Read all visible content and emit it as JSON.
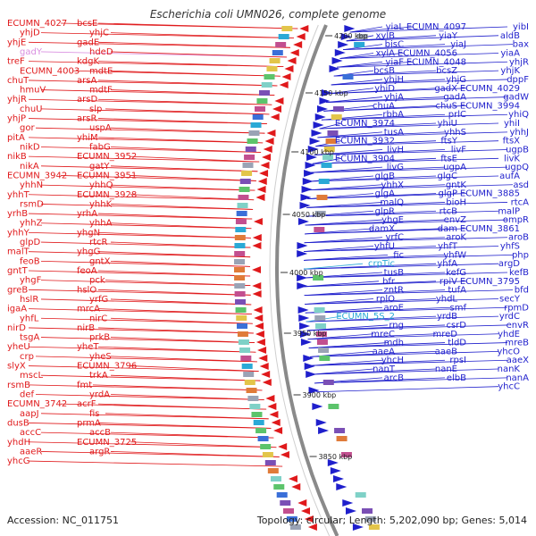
{
  "title": "Escherichia coli UMN026, complete genome",
  "footer": {
    "accession": "Accession: NC_011751",
    "stats": "Topology: circular; Length: 5,202,090 bp; Genes: 5,014"
  },
  "colors": {
    "left_genes": "#e0191b",
    "right_genes": "#1f1fcc",
    "rna": "#2aa9d6",
    "pseudo": "#d98ee0",
    "backbone": "#8a8a8a",
    "tick": "#2a7a2a"
  },
  "kbp_marks": [
    "4200 kbp",
    "4150 kbp",
    "4100 kbp",
    "4050 kbp",
    "4000 kbp",
    "3950 kbp",
    "3900 kbp",
    "3850 kbp"
  ],
  "left_labels": [
    {
      "t": "ECUMN_4027",
      "c": "left_genes"
    },
    {
      "t": "bcsE",
      "c": "left_genes"
    },
    {
      "t": "yhjD",
      "c": "left_genes"
    },
    {
      "t": "yhjC",
      "c": "left_genes"
    },
    {
      "t": "yhjE",
      "c": "left_genes"
    },
    {
      "t": "gadE",
      "c": "left_genes"
    },
    {
      "t": "gadY",
      "c": "pseudo"
    },
    {
      "t": "hdeD",
      "c": "left_genes"
    },
    {
      "t": "treF",
      "c": "left_genes"
    },
    {
      "t": "kdgK",
      "c": "left_genes"
    },
    {
      "t": "ECUMN_4003",
      "c": "left_genes"
    },
    {
      "t": "mdtE",
      "c": "left_genes"
    },
    {
      "t": "chuT",
      "c": "left_genes"
    },
    {
      "t": "arsA",
      "c": "left_genes"
    },
    {
      "t": "hmuV",
      "c": "left_genes"
    },
    {
      "t": "mdtF",
      "c": "left_genes"
    },
    {
      "t": "yhjR",
      "c": "left_genes"
    },
    {
      "t": "arsD",
      "c": "left_genes"
    },
    {
      "t": "chuU",
      "c": "left_genes"
    },
    {
      "t": "slp",
      "c": "left_genes"
    },
    {
      "t": "yhjP",
      "c": "left_genes"
    },
    {
      "t": "arsR",
      "c": "left_genes"
    },
    {
      "t": "gor",
      "c": "left_genes"
    },
    {
      "t": "uspA",
      "c": "left_genes"
    },
    {
      "t": "pitA",
      "c": "left_genes"
    },
    {
      "t": "yhiM",
      "c": "left_genes"
    },
    {
      "t": "nikD",
      "c": "left_genes"
    },
    {
      "t": "fabG",
      "c": "left_genes"
    },
    {
      "t": "nikB",
      "c": "left_genes"
    },
    {
      "t": "ECUMN_3952",
      "c": "left_genes"
    },
    {
      "t": "nikA",
      "c": "left_genes"
    },
    {
      "t": "gatY",
      "c": "left_genes"
    },
    {
      "t": "ECUMN_3942",
      "c": "left_genes"
    },
    {
      "t": "ECUMN_3951",
      "c": "left_genes"
    },
    {
      "t": "yhhN",
      "c": "left_genes"
    },
    {
      "t": "yhhQ",
      "c": "left_genes"
    },
    {
      "t": "yhhT",
      "c": "left_genes"
    },
    {
      "t": "ECUMN_3928",
      "c": "left_genes"
    },
    {
      "t": "rsmD",
      "c": "left_genes"
    },
    {
      "t": "yhhK",
      "c": "left_genes"
    },
    {
      "t": "yrhB",
      "c": "left_genes"
    },
    {
      "t": "yrhA",
      "c": "left_genes"
    },
    {
      "t": "yhhZ",
      "c": "left_genes"
    },
    {
      "t": "yhhA",
      "c": "left_genes"
    },
    {
      "t": "yhhY",
      "c": "left_genes"
    },
    {
      "t": "yhgN",
      "c": "left_genes"
    },
    {
      "t": "glpD",
      "c": "left_genes"
    },
    {
      "t": "rtcR",
      "c": "left_genes"
    },
    {
      "t": "malT",
      "c": "left_genes"
    },
    {
      "t": "yhgG",
      "c": "left_genes"
    },
    {
      "t": "feoB",
      "c": "left_genes"
    },
    {
      "t": "gntX",
      "c": "left_genes"
    },
    {
      "t": "gntT",
      "c": "left_genes"
    },
    {
      "t": "feoA",
      "c": "left_genes"
    },
    {
      "t": "yhgF",
      "c": "left_genes"
    },
    {
      "t": "pck",
      "c": "left_genes"
    },
    {
      "t": "greB",
      "c": "left_genes"
    },
    {
      "t": "hslO",
      "c": "left_genes"
    },
    {
      "t": "hslR",
      "c": "left_genes"
    },
    {
      "t": "yrfG",
      "c": "left_genes"
    },
    {
      "t": "igaA",
      "c": "left_genes"
    },
    {
      "t": "mrcA",
      "c": "left_genes"
    },
    {
      "t": "yhfL",
      "c": "left_genes"
    },
    {
      "t": "nirC",
      "c": "left_genes"
    },
    {
      "t": "nirD",
      "c": "left_genes"
    },
    {
      "t": "nirB",
      "c": "left_genes"
    },
    {
      "t": "tsgA",
      "c": "left_genes"
    },
    {
      "t": "prkB",
      "c": "left_genes"
    },
    {
      "t": "yheU",
      "c": "left_genes"
    },
    {
      "t": "yheT",
      "c": "left_genes"
    },
    {
      "t": "crp",
      "c": "left_genes"
    },
    {
      "t": "yheS",
      "c": "left_genes"
    },
    {
      "t": "slyX",
      "c": "left_genes"
    },
    {
      "t": "ECUMN_3796",
      "c": "left_genes"
    },
    {
      "t": "mscL",
      "c": "left_genes"
    },
    {
      "t": "trkA",
      "c": "left_genes"
    },
    {
      "t": "rsmB",
      "c": "left_genes"
    },
    {
      "t": "fmt",
      "c": "left_genes"
    },
    {
      "t": "def",
      "c": "left_genes"
    },
    {
      "t": "yrdA",
      "c": "left_genes"
    },
    {
      "t": "ECUMN_3742",
      "c": "left_genes"
    },
    {
      "t": "acrF",
      "c": "left_genes"
    },
    {
      "t": "aapJ",
      "c": "left_genes"
    },
    {
      "t": "fis",
      "c": "left_genes"
    },
    {
      "t": "dusB",
      "c": "left_genes"
    },
    {
      "t": "prmA",
      "c": "left_genes"
    },
    {
      "t": "accC",
      "c": "left_genes"
    },
    {
      "t": "accB",
      "c": "left_genes"
    },
    {
      "t": "yhdH",
      "c": "left_genes"
    },
    {
      "t": "ECUMN_3725",
      "c": "left_genes"
    },
    {
      "t": "aaeR",
      "c": "left_genes"
    },
    {
      "t": "argR",
      "c": "left_genes"
    },
    {
      "t": "yhcG",
      "c": "left_genes"
    }
  ],
  "right_labels": [
    {
      "t": "yibI",
      "c": "right_genes"
    },
    {
      "t": "ECUMN_4097",
      "c": "right_genes"
    },
    {
      "t": "yiaL",
      "c": "right_genes"
    },
    {
      "t": "aldB",
      "c": "right_genes"
    },
    {
      "t": "yiaY",
      "c": "right_genes"
    },
    {
      "t": "xylB",
      "c": "right_genes"
    },
    {
      "t": "bax",
      "c": "right_genes"
    },
    {
      "t": "yiaJ",
      "c": "right_genes"
    },
    {
      "t": "bisC",
      "c": "right_genes"
    },
    {
      "t": "yiaA",
      "c": "right_genes"
    },
    {
      "t": "ECUMN_4056",
      "c": "right_genes"
    },
    {
      "t": "xylA",
      "c": "right_genes"
    },
    {
      "t": "yhjR",
      "c": "right_genes"
    },
    {
      "t": "ECUMN_4048",
      "c": "right_genes"
    },
    {
      "t": "yiaF",
      "c": "right_genes"
    },
    {
      "t": "yhjK",
      "c": "right_genes"
    },
    {
      "t": "bcsZ",
      "c": "right_genes"
    },
    {
      "t": "bcsB",
      "c": "right_genes"
    },
    {
      "t": "dppF",
      "c": "right_genes"
    },
    {
      "t": "yhjG",
      "c": "right_genes"
    },
    {
      "t": "yhjH",
      "c": "right_genes"
    },
    {
      "t": "ECUMN_4029",
      "c": "right_genes"
    },
    {
      "t": "gadX",
      "c": "right_genes"
    },
    {
      "t": "yhiD",
      "c": "right_genes"
    },
    {
      "t": "gadW",
      "c": "right_genes"
    },
    {
      "t": "gadA",
      "c": "right_genes"
    },
    {
      "t": "yhjA",
      "c": "right_genes"
    },
    {
      "t": "ECUMN_3994",
      "c": "right_genes"
    },
    {
      "t": "chuS",
      "c": "right_genes"
    },
    {
      "t": "chuA",
      "c": "right_genes"
    },
    {
      "t": "yhiQ",
      "c": "right_genes"
    },
    {
      "t": "prlC",
      "c": "right_genes"
    },
    {
      "t": "rbbA",
      "c": "right_genes"
    },
    {
      "t": "yhiI",
      "c": "right_genes"
    },
    {
      "t": "yhiU",
      "c": "right_genes"
    },
    {
      "t": "ECUMN_3974",
      "c": "right_genes"
    },
    {
      "t": "yhhJ",
      "c": "right_genes"
    },
    {
      "t": "yhhS",
      "c": "right_genes"
    },
    {
      "t": "tusA",
      "c": "right_genes"
    },
    {
      "t": "ftsX",
      "c": "right_genes"
    },
    {
      "t": "ftsY",
      "c": "right_genes"
    },
    {
      "t": "ECUMN_3932",
      "c": "right_genes"
    },
    {
      "t": "ugpB",
      "c": "right_genes"
    },
    {
      "t": "livF",
      "c": "right_genes"
    },
    {
      "t": "livH",
      "c": "right_genes"
    },
    {
      "t": "livK",
      "c": "right_genes"
    },
    {
      "t": "ftsE",
      "c": "right_genes"
    },
    {
      "t": "ECUMN_3904",
      "c": "right_genes"
    },
    {
      "t": "ugpQ",
      "c": "right_genes"
    },
    {
      "t": "ugpA",
      "c": "right_genes"
    },
    {
      "t": "livG",
      "c": "right_genes"
    },
    {
      "t": "aufA",
      "c": "right_genes"
    },
    {
      "t": "glgC",
      "c": "right_genes"
    },
    {
      "t": "glgB",
      "c": "right_genes"
    },
    {
      "t": "asd",
      "c": "right_genes"
    },
    {
      "t": "gntK",
      "c": "right_genes"
    },
    {
      "t": "yhhX",
      "c": "right_genes"
    },
    {
      "t": "ECUMN_3885",
      "c": "right_genes"
    },
    {
      "t": "glgP",
      "c": "right_genes"
    },
    {
      "t": "glgA",
      "c": "right_genes"
    },
    {
      "t": "rtcA",
      "c": "right_genes"
    },
    {
      "t": "bioH",
      "c": "right_genes"
    },
    {
      "t": "malQ",
      "c": "right_genes"
    },
    {
      "t": "malP",
      "c": "right_genes"
    },
    {
      "t": "rtcB",
      "c": "right_genes"
    },
    {
      "t": "glpR",
      "c": "right_genes"
    },
    {
      "t": "ompR",
      "c": "right_genes"
    },
    {
      "t": "envZ",
      "c": "right_genes"
    },
    {
      "t": "yhgE",
      "c": "right_genes"
    },
    {
      "t": "ECUMN_3861",
      "c": "right_genes"
    },
    {
      "t": "dam",
      "c": "right_genes"
    },
    {
      "t": "damX",
      "c": "right_genes"
    },
    {
      "t": "aroB",
      "c": "right_genes"
    },
    {
      "t": "aroK",
      "c": "right_genes"
    },
    {
      "t": "yrfC",
      "c": "right_genes"
    },
    {
      "t": "yhfS",
      "c": "right_genes"
    },
    {
      "t": "yhfT",
      "c": "right_genes"
    },
    {
      "t": "yhfU",
      "c": "right_genes"
    },
    {
      "t": "php",
      "c": "right_genes"
    },
    {
      "t": "yhfW",
      "c": "right_genes"
    },
    {
      "t": "fic",
      "c": "right_genes"
    },
    {
      "t": "argD",
      "c": "right_genes"
    },
    {
      "t": "yhfA",
      "c": "right_genes"
    },
    {
      "t": "crpTic",
      "c": "rna"
    },
    {
      "t": "kefB",
      "c": "right_genes"
    },
    {
      "t": "kefG",
      "c": "right_genes"
    },
    {
      "t": "tusB",
      "c": "right_genes"
    },
    {
      "t": "ECUMN_3795",
      "c": "right_genes"
    },
    {
      "t": "rpiV",
      "c": "right_genes"
    },
    {
      "t": "bfr",
      "c": "right_genes"
    },
    {
      "t": "bfd",
      "c": "right_genes"
    },
    {
      "t": "tufA",
      "c": "right_genes"
    },
    {
      "t": "zntR",
      "c": "right_genes"
    },
    {
      "t": "secY",
      "c": "right_genes"
    },
    {
      "t": "yhdL",
      "c": "right_genes"
    },
    {
      "t": "rplO",
      "c": "right_genes"
    },
    {
      "t": "rpmD",
      "c": "right_genes"
    },
    {
      "t": "smf",
      "c": "right_genes"
    },
    {
      "t": "aroE",
      "c": "right_genes"
    },
    {
      "t": "yrdC",
      "c": "right_genes"
    },
    {
      "t": "yrdB",
      "c": "right_genes"
    },
    {
      "t": "ECUMN_5S_2",
      "c": "rna"
    },
    {
      "t": "envR",
      "c": "right_genes"
    },
    {
      "t": "csrD",
      "c": "right_genes"
    },
    {
      "t": "rng",
      "c": "right_genes"
    },
    {
      "t": "yhdE",
      "c": "right_genes"
    },
    {
      "t": "mreD",
      "c": "right_genes"
    },
    {
      "t": "mreC",
      "c": "right_genes"
    },
    {
      "t": "mreB",
      "c": "right_genes"
    },
    {
      "t": "tldD",
      "c": "right_genes"
    },
    {
      "t": "mdh",
      "c": "right_genes"
    },
    {
      "t": "yhcO",
      "c": "right_genes"
    },
    {
      "t": "aaeB",
      "c": "right_genes"
    },
    {
      "t": "aaeA",
      "c": "right_genes"
    },
    {
      "t": "aaeX",
      "c": "right_genes"
    },
    {
      "t": "rpsI",
      "c": "right_genes"
    },
    {
      "t": "yhcH",
      "c": "right_genes"
    },
    {
      "t": "nanK",
      "c": "right_genes"
    },
    {
      "t": "nanE",
      "c": "right_genes"
    },
    {
      "t": "nanT",
      "c": "right_genes"
    },
    {
      "t": "nanA",
      "c": "right_genes"
    },
    {
      "t": "elbB",
      "c": "right_genes"
    },
    {
      "t": "arcB",
      "c": "right_genes"
    },
    {
      "t": "yhcC",
      "c": "right_genes"
    }
  ]
}
